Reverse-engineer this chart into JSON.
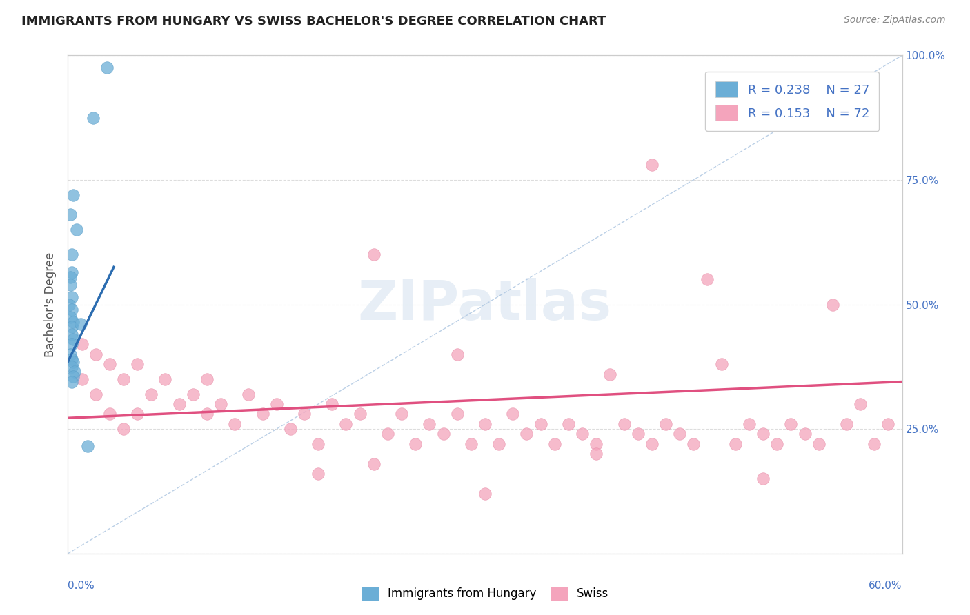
{
  "title": "IMMIGRANTS FROM HUNGARY VS SWISS BACHELOR'S DEGREE CORRELATION CHART",
  "source": "Source: ZipAtlas.com",
  "ylabel": "Bachelor's Degree",
  "xmin": 0.0,
  "xmax": 0.6,
  "ymin": 0.0,
  "ymax": 1.0,
  "blue_R": 0.238,
  "blue_N": 27,
  "pink_R": 0.153,
  "pink_N": 72,
  "blue_color": "#6baed6",
  "pink_color": "#f4a4bc",
  "blue_edge": "#5a9ec9",
  "pink_edge": "#e890aa",
  "blue_scatter_x": [
    0.028,
    0.018,
    0.004,
    0.002,
    0.006,
    0.003,
    0.003,
    0.002,
    0.002,
    0.003,
    0.001,
    0.003,
    0.002,
    0.004,
    0.003,
    0.003,
    0.004,
    0.003,
    0.002,
    0.003,
    0.004,
    0.003,
    0.005,
    0.004,
    0.003,
    0.009,
    0.014
  ],
  "blue_scatter_y": [
    0.975,
    0.875,
    0.72,
    0.68,
    0.65,
    0.6,
    0.565,
    0.555,
    0.54,
    0.515,
    0.5,
    0.49,
    0.475,
    0.465,
    0.455,
    0.44,
    0.43,
    0.42,
    0.4,
    0.39,
    0.385,
    0.375,
    0.365,
    0.355,
    0.345,
    0.46,
    0.215
  ],
  "pink_scatter_x": [
    0.01,
    0.01,
    0.02,
    0.02,
    0.03,
    0.03,
    0.04,
    0.04,
    0.05,
    0.05,
    0.06,
    0.07,
    0.08,
    0.09,
    0.1,
    0.1,
    0.11,
    0.12,
    0.13,
    0.14,
    0.15,
    0.16,
    0.17,
    0.18,
    0.19,
    0.2,
    0.21,
    0.22,
    0.23,
    0.24,
    0.25,
    0.26,
    0.27,
    0.28,
    0.29,
    0.3,
    0.31,
    0.32,
    0.33,
    0.34,
    0.35,
    0.36,
    0.37,
    0.38,
    0.39,
    0.4,
    0.41,
    0.42,
    0.43,
    0.44,
    0.45,
    0.46,
    0.47,
    0.48,
    0.49,
    0.5,
    0.51,
    0.52,
    0.53,
    0.54,
    0.55,
    0.56,
    0.57,
    0.58,
    0.59,
    0.22,
    0.38,
    0.5,
    0.3,
    0.18,
    0.42,
    0.28
  ],
  "pink_scatter_y": [
    0.42,
    0.35,
    0.4,
    0.32,
    0.38,
    0.28,
    0.35,
    0.25,
    0.38,
    0.28,
    0.32,
    0.35,
    0.3,
    0.32,
    0.28,
    0.35,
    0.3,
    0.26,
    0.32,
    0.28,
    0.3,
    0.25,
    0.28,
    0.22,
    0.3,
    0.26,
    0.28,
    0.6,
    0.24,
    0.28,
    0.22,
    0.26,
    0.24,
    0.28,
    0.22,
    0.26,
    0.22,
    0.28,
    0.24,
    0.26,
    0.22,
    0.26,
    0.24,
    0.22,
    0.36,
    0.26,
    0.24,
    0.22,
    0.26,
    0.24,
    0.22,
    0.55,
    0.38,
    0.22,
    0.26,
    0.24,
    0.22,
    0.26,
    0.24,
    0.22,
    0.5,
    0.26,
    0.3,
    0.22,
    0.26,
    0.18,
    0.2,
    0.15,
    0.12,
    0.16,
    0.78,
    0.4
  ],
  "blue_trend_x0": 0.0,
  "blue_trend_x1": 0.033,
  "blue_trend_y0": 0.385,
  "blue_trend_y1": 0.575,
  "pink_trend_x0": 0.0,
  "pink_trend_x1": 0.6,
  "pink_trend_y0": 0.272,
  "pink_trend_y1": 0.345,
  "ref_line_x0": 0.0,
  "ref_line_x1": 0.6,
  "ref_line_y0": 0.0,
  "ref_line_y1": 1.0,
  "watermark_text": "ZIPatlas",
  "bg_color": "#ffffff",
  "grid_color": "#dddddd",
  "title_color": "#222222",
  "axis_label_color": "#4472c4",
  "source_color": "#888888"
}
